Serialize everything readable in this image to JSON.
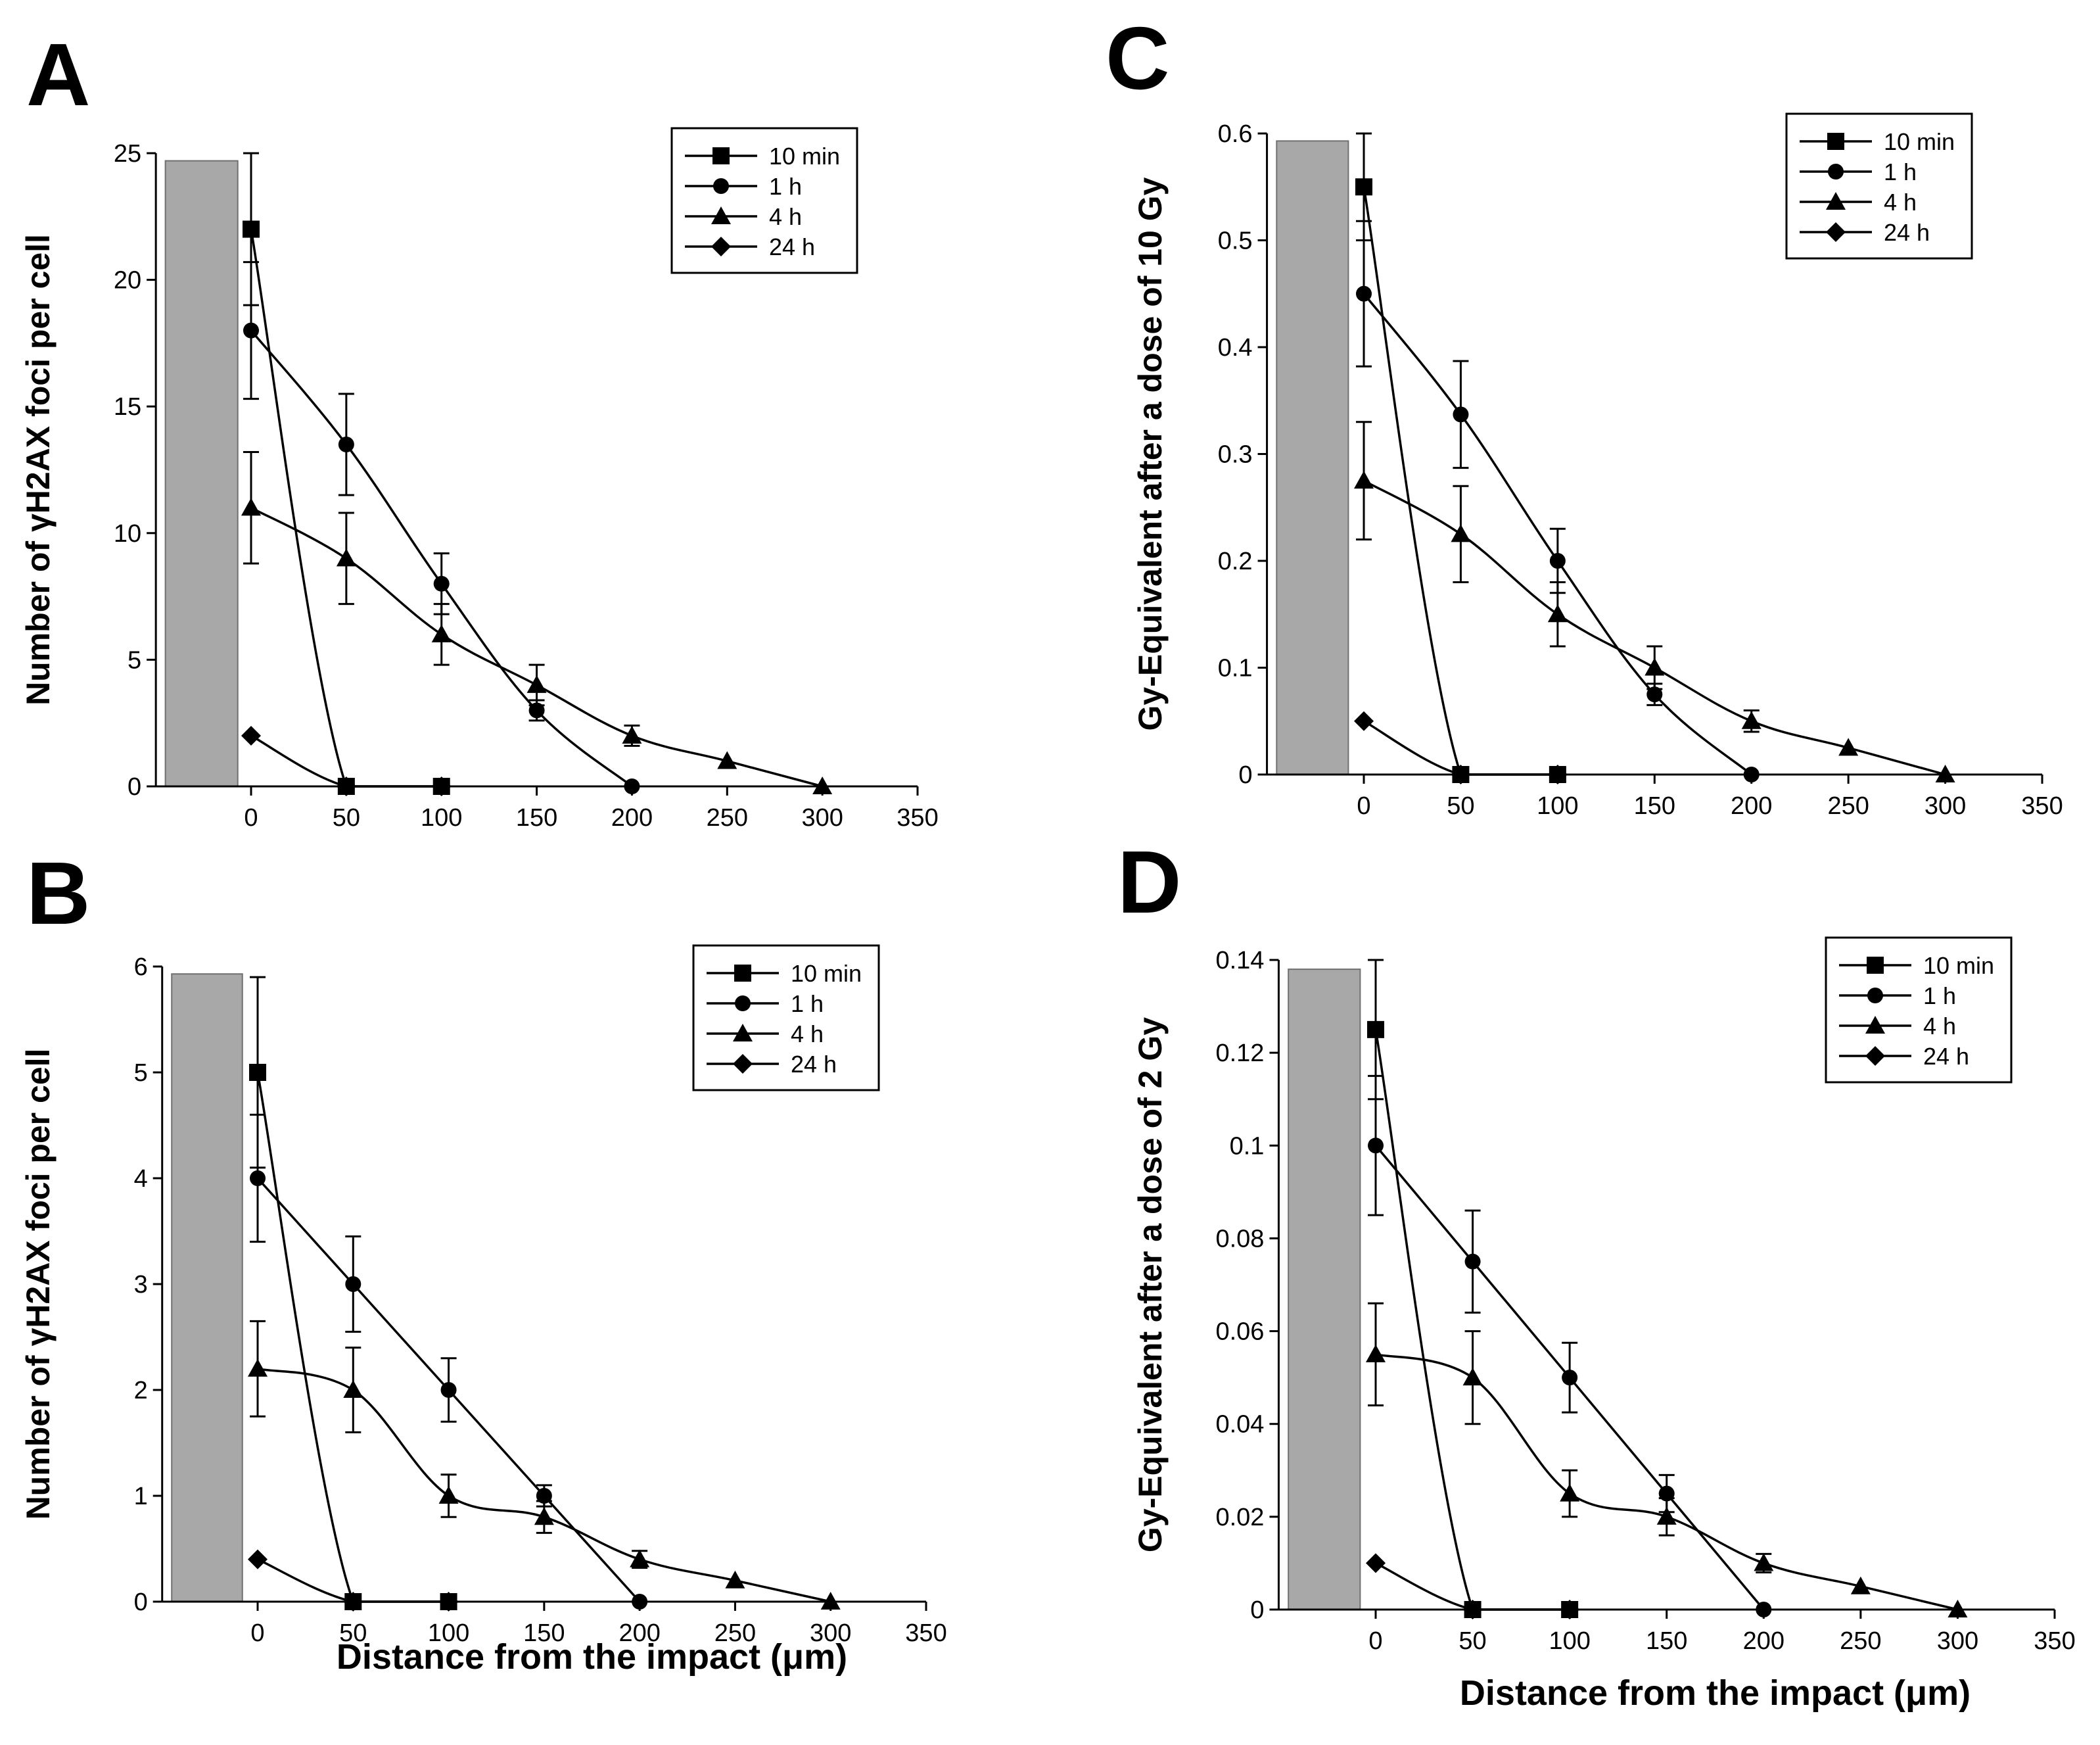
{
  "panels": [
    {
      "letter": "A",
      "ylabel": "Number of γH2AX foci per cell",
      "xlabel": "",
      "yticks": [
        "0",
        "5",
        "10",
        "15",
        "20",
        "25"
      ],
      "xticks": [
        "0",
        "50",
        "100",
        "150",
        "200",
        "250",
        "300",
        "350"
      ]
    },
    {
      "letter": "B",
      "ylabel": "Number of γH2AX foci per cell",
      "xlabel": "Distance from the impact (μm)",
      "yticks": [
        "0",
        "1",
        "2",
        "3",
        "4",
        "5",
        "6"
      ],
      "xticks": [
        "0",
        "50",
        "100",
        "150",
        "200",
        "250",
        "300",
        "350"
      ]
    },
    {
      "letter": "C",
      "ylabel": "Gy-Equivalent after a dose of 10 Gy",
      "xlabel": "",
      "yticks": [
        "0",
        "0.1",
        "0.2",
        "0.3",
        "0.4",
        "0.5",
        "0.6"
      ],
      "xticks": [
        "0",
        "50",
        "100",
        "150",
        "200",
        "250",
        "300",
        "350"
      ]
    },
    {
      "letter": "D",
      "ylabel": "Gy-Equivalent after a dose of 2 Gy",
      "xlabel": "Distance from the impact (μm)",
      "yticks": [
        "0",
        "0.02",
        "0.04",
        "0.06",
        "0.08",
        "0.1",
        "0.12",
        "0.14"
      ],
      "xticks": [
        "0",
        "50",
        "100",
        "150",
        "200",
        "250",
        "300",
        "350"
      ]
    }
  ],
  "legend": {
    "labels": [
      "10 min",
      "1 h",
      "4 h",
      "24 h"
    ],
    "markers": [
      "square",
      "circle",
      "triangle",
      "diamond"
    ]
  },
  "colors": {
    "line": "#000000",
    "bar": "#a8a8a8"
  },
  "chart_data": [
    {
      "type": "line",
      "title": "",
      "xlabel": "",
      "ylabel": "Number of γH2AX foci per cell",
      "xlim": [
        -50,
        350
      ],
      "ylim": [
        0,
        25
      ],
      "bar_range": [
        -45,
        -7
      ],
      "bar_height": 24.7,
      "series": [
        {
          "name": "10 min",
          "marker": "square",
          "x": [
            0,
            50,
            100
          ],
          "y": [
            22,
            0,
            0
          ],
          "err": [
            3,
            0,
            0
          ]
        },
        {
          "name": "1 h",
          "marker": "circle",
          "x": [
            0,
            50,
            100,
            150,
            200
          ],
          "y": [
            18,
            13.5,
            8,
            3,
            0
          ],
          "err": [
            2.7,
            2,
            1.2,
            0.4,
            0
          ]
        },
        {
          "name": "4 h",
          "marker": "triangle",
          "x": [
            0,
            50,
            100,
            150,
            200,
            250,
            300
          ],
          "y": [
            11,
            9,
            6,
            4,
            2,
            1,
            0
          ],
          "err": [
            2.2,
            1.8,
            1.2,
            0.8,
            0.4,
            0,
            0
          ]
        },
        {
          "name": "24 h",
          "marker": "diamond",
          "x": [
            0,
            50,
            100
          ],
          "y": [
            2,
            0,
            0
          ],
          "err": [
            0,
            0,
            0
          ]
        }
      ]
    },
    {
      "type": "line",
      "title": "",
      "xlabel": "Distance from the impact (μm)",
      "ylabel": "Number of γH2AX foci per cell",
      "xlim": [
        -50,
        350
      ],
      "ylim": [
        0,
        6
      ],
      "bar_range": [
        -45,
        -8
      ],
      "bar_height": 5.93,
      "series": [
        {
          "name": "10 min",
          "marker": "square",
          "x": [
            0,
            50,
            100
          ],
          "y": [
            5,
            0,
            0
          ],
          "err": [
            0.9,
            0,
            0
          ]
        },
        {
          "name": "1 h",
          "marker": "circle",
          "x": [
            0,
            50,
            100,
            150,
            200
          ],
          "y": [
            4,
            3,
            2,
            1,
            0
          ],
          "err": [
            0.6,
            0.45,
            0.3,
            0.1,
            0
          ]
        },
        {
          "name": "4 h",
          "marker": "triangle",
          "x": [
            0,
            50,
            100,
            150,
            200,
            250,
            300
          ],
          "y": [
            2.2,
            2,
            1,
            0.8,
            0.4,
            0.2,
            0
          ],
          "err": [
            0.45,
            0.4,
            0.2,
            0.15,
            0.08,
            0,
            0
          ]
        },
        {
          "name": "24 h",
          "marker": "diamond",
          "x": [
            0,
            50,
            100
          ],
          "y": [
            0.4,
            0,
            0
          ],
          "err": [
            0,
            0,
            0
          ]
        }
      ]
    },
    {
      "type": "line",
      "title": "",
      "xlabel": "",
      "ylabel": "Gy-Equivalent after a dose of 10 Gy",
      "xlim": [
        -50,
        350
      ],
      "ylim": [
        0,
        0.6
      ],
      "bar_range": [
        -45,
        -8
      ],
      "bar_height": 0.593,
      "series": [
        {
          "name": "10 min",
          "marker": "square",
          "x": [
            0,
            50,
            100
          ],
          "y": [
            0.55,
            0,
            0
          ],
          "err": [
            0.05,
            0,
            0
          ]
        },
        {
          "name": "1 h",
          "marker": "circle",
          "x": [
            0,
            50,
            100,
            150,
            200
          ],
          "y": [
            0.45,
            0.337,
            0.2,
            0.075,
            0
          ],
          "err": [
            0.068,
            0.05,
            0.03,
            0.01,
            0
          ]
        },
        {
          "name": "4 h",
          "marker": "triangle",
          "x": [
            0,
            50,
            100,
            150,
            200,
            250,
            300
          ],
          "y": [
            0.275,
            0.225,
            0.15,
            0.1,
            0.05,
            0.025,
            0
          ],
          "err": [
            0.055,
            0.045,
            0.03,
            0.02,
            0.01,
            0,
            0
          ]
        },
        {
          "name": "24 h",
          "marker": "diamond",
          "x": [
            0,
            50,
            100
          ],
          "y": [
            0.05,
            0,
            0
          ],
          "err": [
            0,
            0,
            0
          ]
        }
      ]
    },
    {
      "type": "line",
      "title": "",
      "xlabel": "Distance from the impact (μm)",
      "ylabel": "Gy-Equivalent after a dose of 2 Gy",
      "xlim": [
        -50,
        350
      ],
      "ylim": [
        0,
        0.14
      ],
      "bar_range": [
        -45,
        -8
      ],
      "bar_height": 0.138,
      "series": [
        {
          "name": "10 min",
          "marker": "square",
          "x": [
            0,
            50,
            100
          ],
          "y": [
            0.125,
            0,
            0
          ],
          "err": [
            0.015,
            0,
            0
          ]
        },
        {
          "name": "1 h",
          "marker": "circle",
          "x": [
            0,
            50,
            100,
            150,
            200
          ],
          "y": [
            0.1,
            0.075,
            0.05,
            0.025,
            0
          ],
          "err": [
            0.015,
            0.011,
            0.0075,
            0.004,
            0
          ]
        },
        {
          "name": "4 h",
          "marker": "triangle",
          "x": [
            0,
            50,
            100,
            150,
            200,
            250,
            300
          ],
          "y": [
            0.055,
            0.05,
            0.025,
            0.02,
            0.01,
            0.005,
            0
          ],
          "err": [
            0.011,
            0.01,
            0.005,
            0.004,
            0.002,
            0,
            0
          ]
        },
        {
          "name": "24 h",
          "marker": "diamond",
          "x": [
            0,
            50,
            100
          ],
          "y": [
            0.01,
            0,
            0
          ],
          "err": [
            0,
            0,
            0
          ]
        }
      ]
    }
  ]
}
